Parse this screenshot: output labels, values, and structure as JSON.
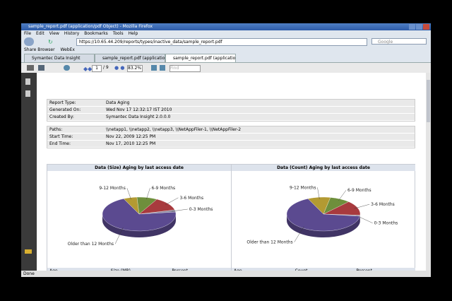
{
  "window": {
    "title": "sample_report.pdf (application/pdf Object) - Mozilla Firefox",
    "menu": [
      "File",
      "Edit",
      "View",
      "History",
      "Bookmarks",
      "Tools",
      "Help"
    ],
    "url": "https://10.65.44.209/reports/types/inactive_data/sample_report.pdf",
    "search": "Google",
    "bookmarks": [
      "Share Browser",
      "WebEx"
    ],
    "tabs": [
      "Symantec Data Insight",
      "sample_report.pdf (application/pdf Obj...",
      "sample_report.pdf (application/..."
    ],
    "status": "Done"
  },
  "pdf_toolbar": {
    "page": "1",
    "page_count": "/ 9",
    "zoom": "83.2%",
    "find": "Find"
  },
  "report": {
    "summary": [
      [
        "Report Type:",
        "Data Aging"
      ],
      [
        "Generated On:",
        "Wed Nov 17 12:32:17 IST 2010"
      ],
      [
        "Created By:",
        "Symantec Data Insight 2.0.0.0"
      ]
    ],
    "scope": [
      [
        "Paths:",
        "\\\\netapp1, \\\\netapp2, \\\\netapp3, \\\\NetAppFiler-1, \\\\NetAppFiler-2"
      ],
      [
        "Start Time:",
        "Nov 22, 2009 12:25 PM"
      ],
      [
        "End Time:",
        "Nov 17, 2010 12:25 PM"
      ]
    ],
    "table_headers": [
      [
        "Age",
        "Size (MB)",
        "Percent"
      ],
      [
        "Age",
        "Count",
        "Percent"
      ]
    ]
  },
  "chart_data": [
    {
      "type": "pie",
      "title": "Data (Size) Aging by last access date",
      "categories": [
        "9-12 Months",
        "6-9 Months",
        "3-6 Months",
        "0-3 Months",
        "Older than 12 Months"
      ],
      "values": [
        6,
        9,
        13,
        2,
        70
      ],
      "colors": [
        "#b39a32",
        "#6e8f3c",
        "#a83a3e",
        "#8c8aa0",
        "#5b4a90"
      ]
    },
    {
      "type": "pie",
      "title": "Data (Count) Aging by last access date",
      "categories": [
        "9-12 Months",
        "6-9 Months",
        "3-6 Months",
        "0-3 Months",
        "Older than 12 Months"
      ],
      "values": [
        10,
        9,
        14,
        1,
        66
      ],
      "colors": [
        "#b39a32",
        "#6e8f3c",
        "#a83a3e",
        "#8c8aa0",
        "#5b4a90"
      ]
    }
  ]
}
